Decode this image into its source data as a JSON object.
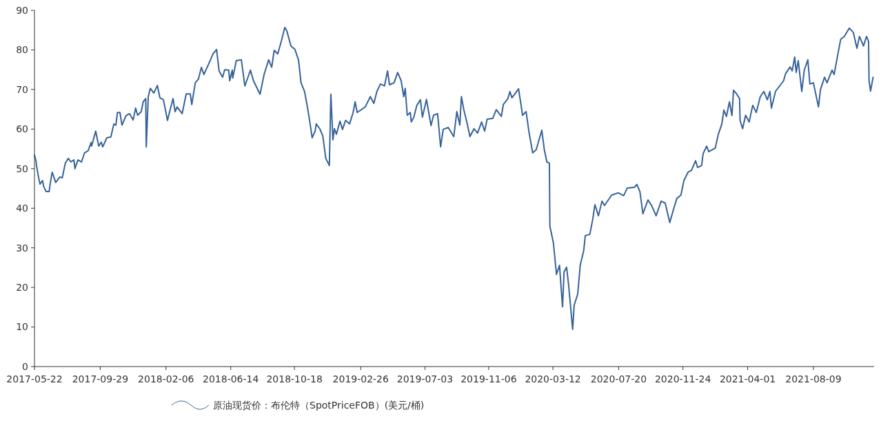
{
  "chart_data": {
    "type": "line",
    "x": [
      "2017-05-22",
      "2017-05-25",
      "2017-05-26",
      "2017-05-30",
      "2017-06-02",
      "2017-06-07",
      "2017-06-09",
      "2017-06-14",
      "2017-06-20",
      "2017-06-22",
      "2017-06-26",
      "2017-07-03",
      "2017-07-11",
      "2017-07-16",
      "2017-07-22",
      "2017-07-28",
      "2017-08-02",
      "2017-08-08",
      "2017-08-10",
      "2017-08-16",
      "2017-08-23",
      "2017-08-29",
      "2017-09-05",
      "2017-09-11",
      "2017-09-12",
      "2017-09-20",
      "2017-09-26",
      "2017-10-01",
      "2017-10-04",
      "2017-10-12",
      "2017-10-20",
      "2017-10-26",
      "2017-10-30",
      "2017-11-02",
      "2017-11-07",
      "2017-11-11",
      "2017-11-19",
      "2017-11-26",
      "2017-12-03",
      "2017-12-08",
      "2017-12-12",
      "2017-12-19",
      "2017-12-23",
      "2017-12-28",
      "2017-12-29",
      "2018-01-02",
      "2018-01-06",
      "2018-01-13",
      "2018-01-20",
      "2018-01-25",
      "2018-02-01",
      "2018-02-09",
      "2018-02-14",
      "2018-02-20",
      "2018-02-24",
      "2018-02-28",
      "2018-03-10",
      "2018-03-18",
      "2018-03-26",
      "2018-03-29",
      "2018-04-05",
      "2018-04-11",
      "2018-04-17",
      "2018-04-22",
      "2018-05-05",
      "2018-05-10",
      "2018-05-17",
      "2018-05-22",
      "2018-05-29",
      "2018-06-02",
      "2018-06-10",
      "2018-06-12",
      "2018-06-17",
      "2018-06-18",
      "2018-06-25",
      "2018-07-05",
      "2018-07-12",
      "2018-07-23",
      "2018-07-29",
      "2018-08-11",
      "2018-08-19",
      "2018-08-28",
      "2018-09-03",
      "2018-09-08",
      "2018-09-15",
      "2018-09-22",
      "2018-09-29",
      "2018-10-03",
      "2018-10-11",
      "2018-10-19",
      "2018-10-26",
      "2018-10-31",
      "2018-11-07",
      "2018-11-13",
      "2018-11-18",
      "2018-11-22",
      "2018-11-28",
      "2018-11-30",
      "2018-12-07",
      "2018-12-13",
      "2018-12-19",
      "2018-12-26",
      "2018-12-29",
      "2019-01-02",
      "2019-01-05",
      "2019-01-09",
      "2019-01-16",
      "2019-01-21",
      "2019-01-27",
      "2019-02-04",
      "2019-02-11",
      "2019-02-15",
      "2019-02-19",
      "2019-02-26",
      "2019-03-07",
      "2019-03-17",
      "2019-03-24",
      "2019-03-30",
      "2019-04-06",
      "2019-04-14",
      "2019-04-20",
      "2019-04-24",
      "2019-05-03",
      "2019-05-10",
      "2019-05-17",
      "2019-05-22",
      "2019-05-25",
      "2019-05-29",
      "2019-06-04",
      "2019-06-06",
      "2019-06-11",
      "2019-06-17",
      "2019-06-24",
      "2019-06-28",
      "2019-07-06",
      "2019-07-15",
      "2019-07-20",
      "2019-07-28",
      "2019-08-03",
      "2019-08-08",
      "2019-08-18",
      "2019-08-29",
      "2019-09-04",
      "2019-09-10",
      "2019-09-13",
      "2019-09-18",
      "2019-09-23",
      "2019-09-30",
      "2019-10-08",
      "2019-10-15",
      "2019-10-23",
      "2019-10-29",
      "2019-11-03",
      "2019-11-14",
      "2019-11-21",
      "2019-12-01",
      "2019-12-05",
      "2019-12-14",
      "2019-12-18",
      "2019-12-22",
      "2019-12-29",
      "2020-01-04",
      "2020-01-08",
      "2020-01-12",
      "2020-01-19",
      "2020-01-25",
      "2020-02-01",
      "2020-02-08",
      "2020-02-14",
      "2020-02-19",
      "2020-02-24",
      "2020-02-29",
      "2020-03-05",
      "2020-03-06",
      "2020-03-13",
      "2020-03-19",
      "2020-03-25",
      "2020-03-31",
      "2020-04-03",
      "2020-04-08",
      "2020-04-12",
      "2020-04-20",
      "2020-04-23",
      "2020-04-30",
      "2020-05-05",
      "2020-05-12",
      "2020-05-15",
      "2020-05-24",
      "2020-05-30",
      "2020-06-03",
      "2020-06-10",
      "2020-06-17",
      "2020-06-22",
      "2020-07-06",
      "2020-07-19",
      "2020-07-30",
      "2020-08-06",
      "2020-08-20",
      "2020-08-25",
      "2020-08-31",
      "2020-09-06",
      "2020-09-16",
      "2020-09-23",
      "2020-10-02",
      "2020-10-12",
      "2020-10-20",
      "2020-10-29",
      "2020-11-05",
      "2020-11-12",
      "2020-11-20",
      "2020-11-26",
      "2020-12-04",
      "2020-12-11",
      "2020-12-19",
      "2020-12-23",
      "2020-12-31",
      "2021-01-03",
      "2021-01-10",
      "2021-01-14",
      "2021-01-27",
      "2021-02-02",
      "2021-02-09",
      "2021-02-13",
      "2021-02-18",
      "2021-02-24",
      "2021-03-01",
      "2021-03-04",
      "2021-03-09",
      "2021-03-16",
      "2021-03-17",
      "2021-03-22",
      "2021-03-28",
      "2021-04-04",
      "2021-04-11",
      "2021-04-18",
      "2021-04-26",
      "2021-05-03",
      "2021-05-10",
      "2021-05-15",
      "2021-05-18",
      "2021-05-26",
      "2021-06-05",
      "2021-06-11",
      "2021-06-15",
      "2021-06-24",
      "2021-06-28",
      "2021-07-03",
      "2021-07-06",
      "2021-07-10",
      "2021-07-17",
      "2021-07-22",
      "2021-07-29",
      "2021-08-02",
      "2021-08-09",
      "2021-08-19",
      "2021-08-23",
      "2021-08-31",
      "2021-09-05",
      "2021-09-15",
      "2021-09-19",
      "2021-09-26",
      "2021-10-02",
      "2021-10-09",
      "2021-10-19",
      "2021-10-27",
      "2021-11-03",
      "2021-11-08",
      "2021-11-16",
      "2021-11-22",
      "2021-11-26",
      "2021-11-27",
      "2021-11-30",
      "2021-12-05"
    ],
    "series": [
      {
        "name": "原油现货价：布伦特（SpotPriceFOB）(美元/桶)",
        "color": "#36629a",
        "values": [
          53.4,
          52,
          50.8,
          47.9,
          46.1,
          47,
          45.6,
          44.2,
          44.2,
          46.1,
          49.1,
          46.5,
          47.9,
          47.7,
          51.4,
          52.6,
          51.7,
          52.2,
          50,
          52.2,
          51.7,
          54,
          54.5,
          56.6,
          55.7,
          59.5,
          55.7,
          56.7,
          55.5,
          57.8,
          58,
          61.3,
          61,
          64.2,
          64.2,
          61,
          63.4,
          63.9,
          62.3,
          65.3,
          63.5,
          64.4,
          66.9,
          67.7,
          55.5,
          68.2,
          70.3,
          69.1,
          71,
          67.9,
          67.4,
          62.2,
          64.8,
          67.7,
          64.4,
          65.6,
          63.9,
          68.9,
          68.9,
          66.2,
          71.7,
          72.6,
          75.6,
          73.8,
          77.5,
          79,
          80.1,
          74.7,
          73.1,
          75,
          74.9,
          72.2,
          74.9,
          72.9,
          77.3,
          77.5,
          70.9,
          74.9,
          72.2,
          68.8,
          73.8,
          77.5,
          75.6,
          79.9,
          79,
          82.2,
          85.7,
          84.8,
          81,
          80.1,
          77.5,
          71.7,
          69.5,
          65.3,
          61.3,
          57.8,
          59.5,
          61.3,
          60.1,
          58.3,
          52.6,
          50.8,
          68.8,
          57.3,
          60.1,
          58.7,
          62,
          59.9,
          62.2,
          61.3,
          64.2,
          66.9,
          64.2,
          64.8,
          65.6,
          68.2,
          66.5,
          69.5,
          71.4,
          70.9,
          74.7,
          71.2,
          71.7,
          74.3,
          72.2,
          68.2,
          70.3,
          63.5,
          64.2,
          61.8,
          63,
          66,
          67.4,
          63,
          67.5,
          60.9,
          63.5,
          63.9,
          55.5,
          59.9,
          60.4,
          58.1,
          64.4,
          61,
          68.2,
          64.8,
          62.2,
          58.1,
          60.1,
          59,
          61.8,
          59.5,
          62.5,
          62.7,
          64.9,
          63.2,
          66.2,
          67.7,
          69.5,
          67.9,
          69.1,
          70.2,
          66.9,
          63.5,
          64.4,
          59,
          54,
          54.8,
          57.5,
          59.7,
          54.8,
          51.7,
          51.4,
          35.5,
          31.2,
          23.3,
          25.6,
          15.1,
          23.9,
          25.1,
          20.7,
          9.4,
          15.5,
          18.3,
          25.6,
          29.4,
          33.1,
          33.4,
          37.4,
          40.9,
          38.1,
          41.8,
          40.7,
          43.3,
          43.9,
          43.2,
          45.1,
          45.3,
          46,
          44.2,
          38.6,
          42.1,
          40.7,
          38.1,
          41.8,
          41.3,
          36.4,
          39.5,
          42.5,
          43.3,
          47,
          49.1,
          49.6,
          52,
          50.3,
          50.8,
          53.8,
          55.7,
          54.3,
          55.2,
          58.7,
          61.3,
          64.8,
          63.2,
          66.9,
          63.4,
          69.8,
          69.1,
          67.7,
          62.2,
          60.1,
          63.5,
          61.8,
          66,
          64.2,
          68.2,
          69.5,
          67.4,
          69.5,
          65.3,
          69.5,
          71.2,
          72.2,
          74,
          75.7,
          74.7,
          78.2,
          74.3,
          77.3,
          69.5,
          74.9,
          77.5,
          71.4,
          71.7,
          65.6,
          70,
          73.1,
          71.7,
          74.9,
          73.8,
          78.7,
          82.7,
          83.4,
          85.5,
          84.4,
          80.4,
          83.4,
          81,
          83.4,
          82.2,
          72.2,
          69.6,
          73.1
        ]
      }
    ],
    "xlim": [
      "2017-05-22",
      "2021-12-07"
    ],
    "xticks": [
      "2017-05-22",
      "2017-09-29",
      "2018-02-06",
      "2018-06-14",
      "2018-10-18",
      "2019-02-26",
      "2019-07-03",
      "2019-11-06",
      "2020-03-12",
      "2020-07-20",
      "2020-11-24",
      "2021-04-01",
      "2021-08-09"
    ],
    "ylim": [
      0,
      90
    ],
    "yticks": [
      0,
      10,
      20,
      30,
      40,
      50,
      60,
      70,
      80,
      90
    ],
    "legend": "bottom"
  }
}
